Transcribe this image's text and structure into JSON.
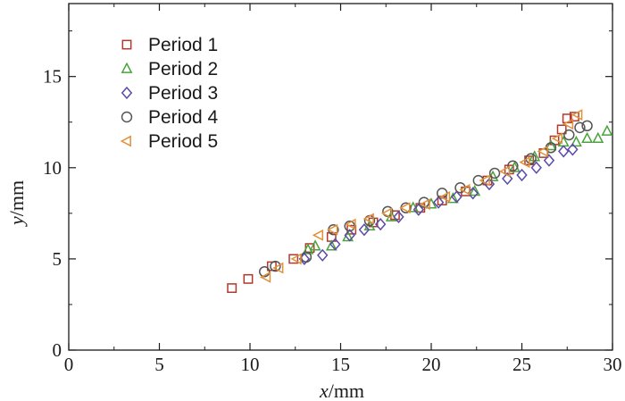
{
  "chart_data": {
    "type": "scatter",
    "title": "",
    "xlabel": {
      "var": "x",
      "unit": "/mm"
    },
    "ylabel": {
      "var": "y",
      "unit": "/mm"
    },
    "xlim": [
      0,
      30
    ],
    "ylim": [
      0,
      19
    ],
    "xticks": [
      0,
      5,
      10,
      15,
      20,
      25,
      30
    ],
    "yticks": [
      0,
      5,
      10,
      15
    ],
    "grid": false,
    "legend_position": "top-left",
    "series": [
      {
        "name": "Period 1",
        "marker": "square",
        "color": "#b03a2e",
        "points": [
          [
            9.0,
            3.4
          ],
          [
            9.9,
            3.9
          ],
          [
            11.2,
            4.6
          ],
          [
            12.4,
            5.0
          ],
          [
            13.3,
            5.6
          ],
          [
            14.5,
            6.2
          ],
          [
            15.6,
            6.6
          ],
          [
            16.8,
            7.0
          ],
          [
            18.0,
            7.4
          ],
          [
            19.4,
            7.8
          ],
          [
            20.6,
            8.2
          ],
          [
            21.9,
            8.7
          ],
          [
            23.1,
            9.3
          ],
          [
            24.3,
            9.9
          ],
          [
            25.4,
            10.4
          ],
          [
            26.2,
            10.8
          ],
          [
            26.8,
            11.5
          ],
          [
            27.2,
            12.1
          ],
          [
            27.5,
            12.7
          ],
          [
            27.9,
            12.8
          ]
        ]
      },
      {
        "name": "Period 2",
        "marker": "triangle-up",
        "color": "#4aa33d",
        "points": [
          [
            13.2,
            5.5
          ],
          [
            13.6,
            5.7
          ],
          [
            14.5,
            5.7
          ],
          [
            15.4,
            6.2
          ],
          [
            16.6,
            6.8
          ],
          [
            17.8,
            7.3
          ],
          [
            19.0,
            7.8
          ],
          [
            20.0,
            8.0
          ],
          [
            21.2,
            8.3
          ],
          [
            22.4,
            8.7
          ],
          [
            23.4,
            9.5
          ],
          [
            24.6,
            10.0
          ],
          [
            25.7,
            10.6
          ],
          [
            26.6,
            11.2
          ],
          [
            27.3,
            11.4
          ],
          [
            28.0,
            11.4
          ],
          [
            28.6,
            11.6
          ],
          [
            29.2,
            11.6
          ],
          [
            29.7,
            12.0
          ]
        ]
      },
      {
        "name": "Period 3",
        "marker": "diamond",
        "color": "#5b4aa8",
        "points": [
          [
            13.0,
            5.0
          ],
          [
            14.0,
            5.2
          ],
          [
            14.7,
            5.8
          ],
          [
            15.5,
            6.3
          ],
          [
            16.3,
            6.6
          ],
          [
            17.2,
            6.9
          ],
          [
            18.2,
            7.3
          ],
          [
            19.3,
            7.7
          ],
          [
            20.4,
            8.1
          ],
          [
            21.4,
            8.4
          ],
          [
            22.3,
            8.6
          ],
          [
            23.2,
            9.1
          ],
          [
            24.2,
            9.4
          ],
          [
            25.0,
            9.6
          ],
          [
            25.8,
            10.0
          ],
          [
            26.5,
            10.4
          ],
          [
            27.3,
            10.9
          ],
          [
            27.8,
            11.0
          ]
        ]
      },
      {
        "name": "Period 4",
        "marker": "circle",
        "color": "#555555",
        "points": [
          [
            10.8,
            4.3
          ],
          [
            11.4,
            4.6
          ],
          [
            13.1,
            5.1
          ],
          [
            14.6,
            6.6
          ],
          [
            15.5,
            6.8
          ],
          [
            16.6,
            7.1
          ],
          [
            17.6,
            7.6
          ],
          [
            18.6,
            7.8
          ],
          [
            19.6,
            8.1
          ],
          [
            20.6,
            8.6
          ],
          [
            21.6,
            8.9
          ],
          [
            22.6,
            9.3
          ],
          [
            23.5,
            9.7
          ],
          [
            24.5,
            10.1
          ],
          [
            25.5,
            10.5
          ],
          [
            26.6,
            11.1
          ],
          [
            27.6,
            11.8
          ],
          [
            28.2,
            12.2
          ],
          [
            28.6,
            12.3
          ]
        ]
      },
      {
        "name": "Period 5",
        "marker": "triangle-left",
        "color": "#e0913a",
        "points": [
          [
            10.9,
            4.0
          ],
          [
            11.6,
            4.5
          ],
          [
            12.6,
            5.0
          ],
          [
            13.8,
            6.3
          ],
          [
            14.6,
            6.6
          ],
          [
            15.6,
            6.9
          ],
          [
            16.6,
            7.2
          ],
          [
            17.6,
            7.5
          ],
          [
            18.6,
            7.8
          ],
          [
            19.7,
            8.0
          ],
          [
            20.8,
            8.4
          ],
          [
            21.9,
            8.8
          ],
          [
            23.0,
            9.3
          ],
          [
            24.1,
            9.8
          ],
          [
            25.2,
            10.3
          ],
          [
            26.2,
            10.9
          ],
          [
            27.0,
            11.6
          ],
          [
            27.6,
            12.4
          ],
          [
            28.1,
            12.9
          ]
        ]
      }
    ]
  }
}
